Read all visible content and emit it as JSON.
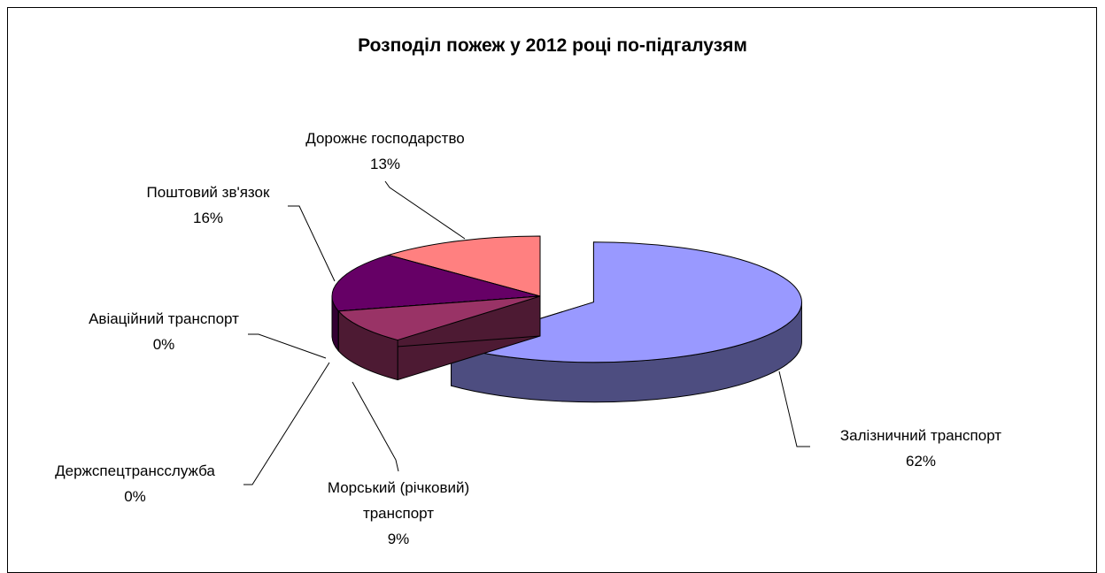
{
  "chart_data": {
    "type": "pie3d",
    "title": "Розподіл пожеж у 2012 році по-підгалузям",
    "categories": [
      "Залізничний транспорт",
      "Морський (річковий) транспорт",
      "Держспецтрансслужба",
      "Авіаційний транспорт",
      "Поштовий зв'язок",
      "Дорожнє господарство"
    ],
    "values": [
      62,
      9,
      0,
      0,
      16,
      13
    ],
    "value_labels": [
      "62%",
      "9%",
      "0%",
      "0%",
      "16%",
      "13%"
    ],
    "colors": [
      "#9999ff",
      "#993366",
      "#ffffcc",
      "#ccffff",
      "#660066",
      "#ff8080"
    ],
    "exploded": [
      0
    ]
  }
}
